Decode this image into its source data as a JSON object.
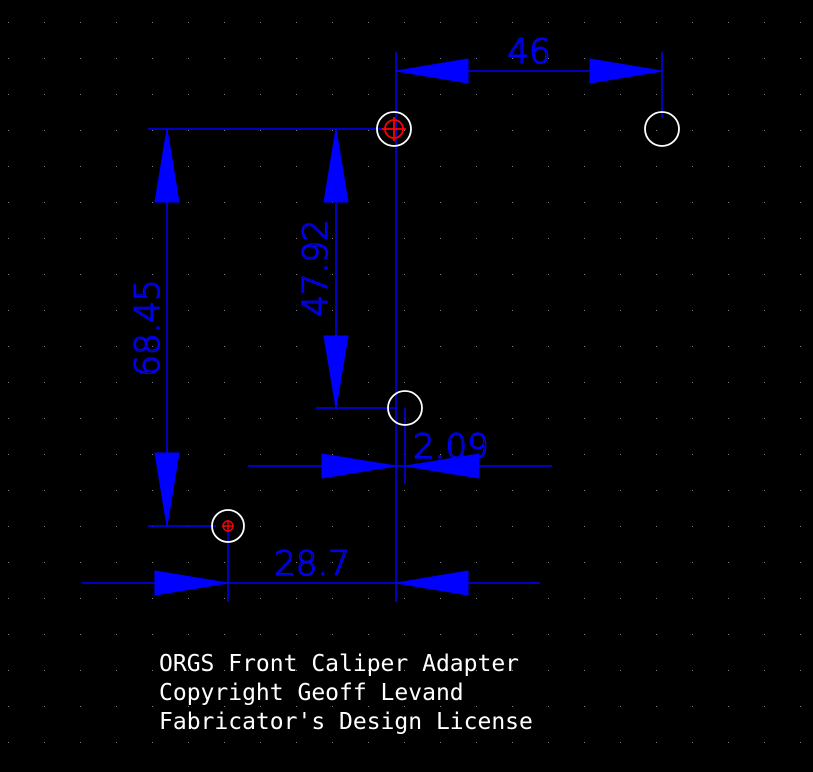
{
  "colors": {
    "background": "#000000",
    "grid_dot": "#7f7f7f",
    "dimension": "#0000ff",
    "hole_outline": "#ffffff",
    "marker": "#ff0000"
  },
  "dimensions": {
    "horizontal_top": "46",
    "vertical_left": "68.45",
    "vertical_middle": "47.92",
    "small_offset": "2.09",
    "horizontal_bottom": "28.7"
  },
  "notes": {
    "line1": "ORGS Front Caliper Adapter",
    "line2": "Copyright Geoff Levand",
    "line3": "Fabricator's Design License"
  }
}
